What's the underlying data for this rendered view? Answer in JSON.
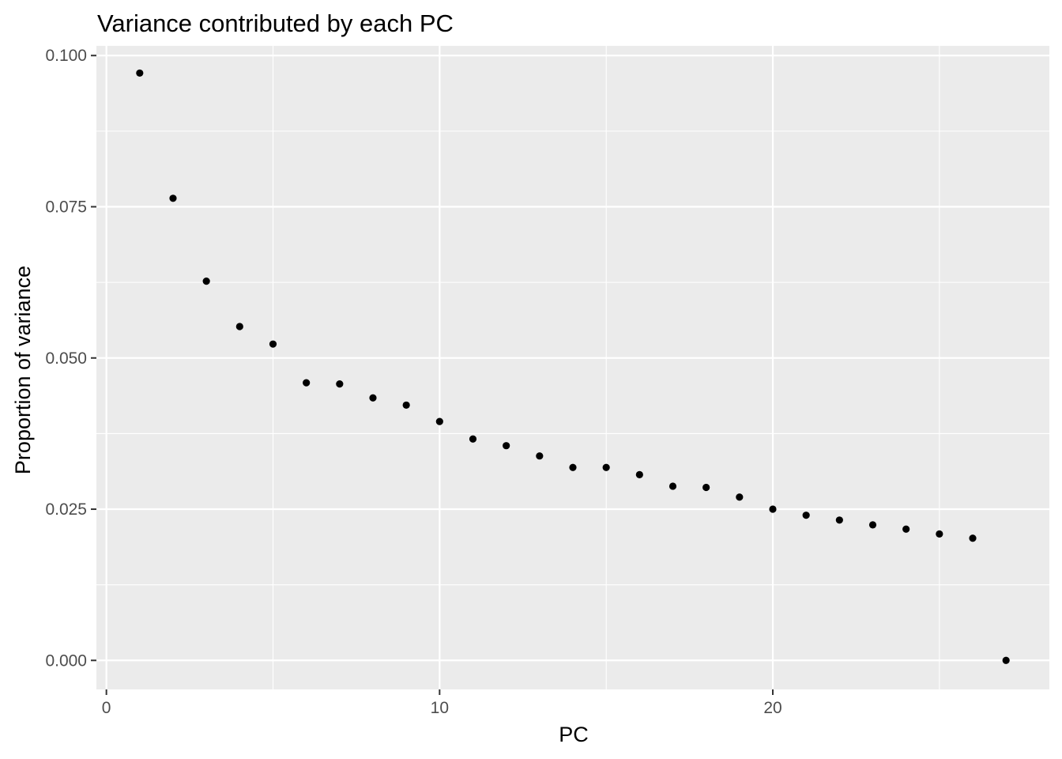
{
  "chart_data": {
    "type": "scatter",
    "title": "Variance contributed by each PC",
    "xlabel": "PC",
    "ylabel": "Proportion of variance",
    "xlim": [
      -0.3,
      28.3
    ],
    "ylim": [
      -0.0048,
      0.1016
    ],
    "x_ticks": [
      0,
      10,
      20
    ],
    "x_tick_labels": [
      "0",
      "10",
      "20"
    ],
    "y_ticks": [
      0,
      0.025,
      0.05,
      0.075,
      0.1
    ],
    "y_tick_labels": [
      "0.000",
      "0.025",
      "0.050",
      "0.075",
      "0.100"
    ],
    "grid": true,
    "colors": {
      "panel": "#ebebeb",
      "grid": "#ffffff",
      "point": "#000000",
      "tick": "#333333"
    },
    "series": [
      {
        "x": [
          1,
          2,
          3,
          4,
          5,
          6,
          7,
          8,
          9,
          10,
          11,
          12,
          13,
          14,
          15,
          16,
          17,
          18,
          19,
          20,
          21,
          22,
          23,
          24,
          25,
          26,
          27
        ],
        "y": [
          0.0971,
          0.0764,
          0.0627,
          0.0552,
          0.0523,
          0.0459,
          0.0457,
          0.0434,
          0.0422,
          0.0395,
          0.0366,
          0.0355,
          0.0338,
          0.0319,
          0.0319,
          0.0307,
          0.0288,
          0.0286,
          0.027,
          0.025,
          0.024,
          0.0232,
          0.0224,
          0.0217,
          0.0209,
          0.0202,
          0.0
        ]
      }
    ]
  }
}
